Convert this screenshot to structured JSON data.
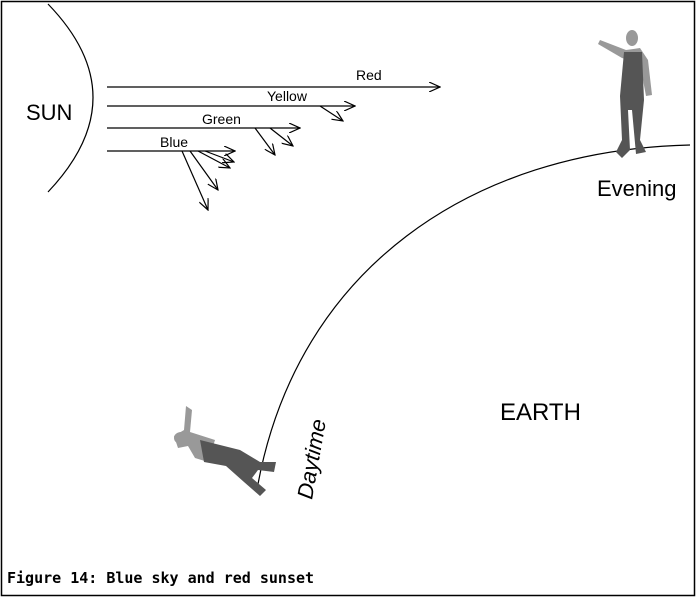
{
  "sun": "SUN",
  "rays": [
    "Red",
    "Yellow",
    "Green",
    "Blue"
  ],
  "evening": "Evening",
  "daytime": "Daytime",
  "earth": "EARTH",
  "caption": "Figure 14: Blue sky and red sunset"
}
